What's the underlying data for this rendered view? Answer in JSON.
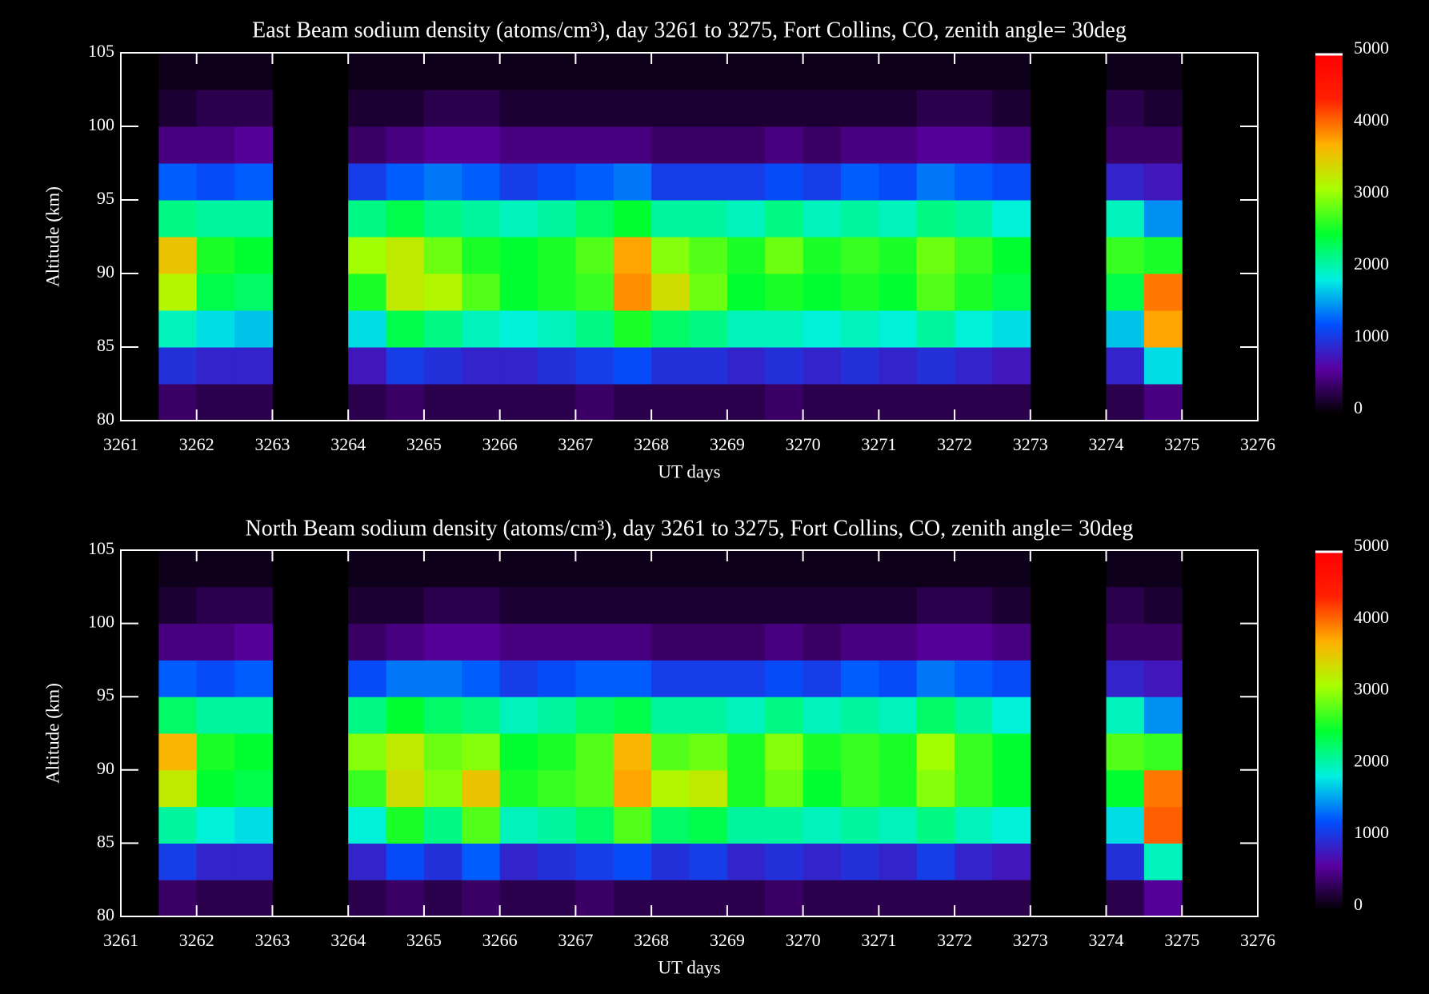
{
  "chart_data": [
    {
      "type": "heatmap",
      "title": "East Beam sodium density (atoms/cm³), day 3261 to  3275, Fort Collins, CO, zenith angle= 30deg",
      "xlabel": "UT days",
      "ylabel": "Altitude (km)",
      "xlim": [
        3261,
        3276
      ],
      "xticks": [
        3261,
        3262,
        3263,
        3264,
        3265,
        3266,
        3267,
        3268,
        3269,
        3270,
        3271,
        3272,
        3273,
        3274,
        3275,
        3276
      ],
      "ylim": [
        80,
        105
      ],
      "yticks": [
        80,
        85,
        90,
        95,
        100,
        105
      ],
      "zlim": [
        0,
        5000
      ],
      "zticks": [
        0,
        1000,
        2000,
        3000,
        4000,
        5000
      ],
      "colormap": [
        "#000000",
        "#5a00a0",
        "#0050ff",
        "#00f0e0",
        "#00ff30",
        "#a8ff00",
        "#ffb000",
        "#ff2000",
        "#ff0000"
      ],
      "xbins": [
        3261.5,
        3262,
        3262.5,
        3263,
        3263.5,
        3264,
        3264.5,
        3265,
        3265.5,
        3266,
        3266.5,
        3267,
        3267.5,
        3268,
        3268.5,
        3269,
        3269.5,
        3270,
        3270.5,
        3271,
        3271.5,
        3272,
        3272.5,
        3273,
        3273.5,
        3274,
        3274.5,
        3275
      ],
      "ybins": [
        80,
        82.5,
        85,
        87.5,
        90,
        92.5,
        95,
        97.5,
        100,
        102.5,
        105
      ],
      "values": [
        [
          400,
          300,
          300,
          null,
          null,
          300,
          400,
          300,
          300,
          300,
          300,
          400,
          300,
          300,
          300,
          300,
          400,
          300,
          300,
          300,
          300,
          300,
          300,
          null,
          null,
          300,
          500
        ],
        [
          1000,
          900,
          900,
          null,
          null,
          800,
          1100,
          1000,
          900,
          900,
          1000,
          1100,
          1200,
          1000,
          1000,
          900,
          1000,
          900,
          1000,
          900,
          1000,
          900,
          800,
          null,
          null,
          900,
          1800
        ],
        [
          2000,
          1800,
          1700,
          null,
          null,
          1800,
          2400,
          2200,
          2000,
          1900,
          2000,
          2200,
          2600,
          2300,
          2200,
          2000,
          2000,
          1900,
          2000,
          1900,
          2100,
          1900,
          1800,
          null,
          null,
          1700,
          3800
        ],
        [
          3200,
          2400,
          2300,
          null,
          null,
          2600,
          3300,
          3200,
          2800,
          2500,
          2600,
          2700,
          3900,
          3400,
          2900,
          2500,
          2600,
          2500,
          2600,
          2500,
          2800,
          2600,
          2400,
          null,
          null,
          2400,
          4000
        ],
        [
          3600,
          2600,
          2500,
          null,
          null,
          3100,
          3300,
          2900,
          2600,
          2500,
          2600,
          2800,
          3800,
          3000,
          2800,
          2600,
          2900,
          2600,
          2700,
          2600,
          2900,
          2700,
          2500,
          null,
          null,
          2700,
          2600
        ],
        [
          2200,
          2100,
          2100,
          null,
          null,
          2200,
          2400,
          2200,
          2100,
          2000,
          2100,
          2300,
          2500,
          2100,
          2100,
          2000,
          2200,
          2000,
          2100,
          2000,
          2200,
          2100,
          1900,
          null,
          null,
          2000,
          1500
        ],
        [
          1300,
          1200,
          1300,
          null,
          null,
          1100,
          1300,
          1400,
          1300,
          1100,
          1200,
          1300,
          1400,
          1100,
          1100,
          1100,
          1200,
          1100,
          1300,
          1200,
          1400,
          1300,
          1200,
          null,
          null,
          900,
          800
        ],
        [
          500,
          500,
          600,
          null,
          null,
          400,
          500,
          600,
          600,
          500,
          500,
          500,
          500,
          400,
          400,
          400,
          500,
          400,
          500,
          500,
          600,
          600,
          500,
          null,
          null,
          400,
          400
        ],
        [
          200,
          300,
          300,
          null,
          null,
          200,
          200,
          300,
          300,
          200,
          200,
          200,
          200,
          200,
          200,
          200,
          200,
          200,
          200,
          200,
          300,
          300,
          200,
          null,
          null,
          300,
          200
        ],
        [
          100,
          100,
          100,
          null,
          null,
          100,
          100,
          100,
          100,
          100,
          100,
          100,
          100,
          100,
          100,
          100,
          100,
          100,
          100,
          100,
          100,
          100,
          100,
          null,
          null,
          100,
          100
        ]
      ]
    },
    {
      "type": "heatmap",
      "title": "North Beam sodium density (atoms/cm³), day 3261 to  3275, Fort Collins, CO, zenith angle= 30deg",
      "xlabel": "UT days",
      "ylabel": "Altitude (km)",
      "xlim": [
        3261,
        3276
      ],
      "xticks": [
        3261,
        3262,
        3263,
        3264,
        3265,
        3266,
        3267,
        3268,
        3269,
        3270,
        3271,
        3272,
        3273,
        3274,
        3275,
        3276
      ],
      "ylim": [
        80,
        105
      ],
      "yticks": [
        80,
        85,
        90,
        95,
        100,
        105
      ],
      "zlim": [
        0,
        5000
      ],
      "zticks": [
        0,
        1000,
        2000,
        3000,
        4000,
        5000
      ],
      "colormap": [
        "#000000",
        "#5a00a0",
        "#0050ff",
        "#00f0e0",
        "#00ff30",
        "#a8ff00",
        "#ffb000",
        "#ff2000",
        "#ff0000"
      ],
      "xbins": [
        3261.5,
        3262,
        3262.5,
        3263,
        3263.5,
        3264,
        3264.5,
        3265,
        3265.5,
        3266,
        3266.5,
        3267,
        3267.5,
        3268,
        3268.5,
        3269,
        3269.5,
        3270,
        3270.5,
        3271,
        3271.5,
        3272,
        3272.5,
        3273,
        3273.5,
        3274,
        3274.5,
        3275
      ],
      "ybins": [
        80,
        82.5,
        85,
        87.5,
        90,
        92.5,
        95,
        97.5,
        100,
        102.5,
        105
      ],
      "values": [
        [
          400,
          300,
          300,
          null,
          null,
          300,
          400,
          300,
          400,
          300,
          300,
          400,
          300,
          300,
          300,
          300,
          400,
          300,
          300,
          300,
          300,
          300,
          300,
          null,
          null,
          300,
          600
        ],
        [
          1100,
          900,
          900,
          null,
          null,
          900,
          1200,
          1000,
          1300,
          900,
          1000,
          1100,
          1200,
          1000,
          1100,
          900,
          1000,
          900,
          1000,
          900,
          1100,
          900,
          800,
          null,
          null,
          1000,
          2000
        ],
        [
          2100,
          1900,
          1800,
          null,
          null,
          1900,
          2600,
          2200,
          2800,
          2000,
          2100,
          2300,
          2800,
          2300,
          2400,
          2100,
          2100,
          2000,
          2100,
          2000,
          2200,
          2000,
          1900,
          null,
          null,
          1800,
          4100
        ],
        [
          3300,
          2500,
          2400,
          null,
          null,
          2700,
          3400,
          3000,
          3600,
          2600,
          2700,
          2800,
          3800,
          3200,
          3300,
          2600,
          2900,
          2500,
          2700,
          2600,
          3000,
          2700,
          2500,
          null,
          null,
          2500,
          4000
        ],
        [
          3700,
          2600,
          2500,
          null,
          null,
          3000,
          3300,
          2900,
          3000,
          2500,
          2600,
          2800,
          3700,
          2800,
          2900,
          2600,
          3000,
          2600,
          2700,
          2600,
          3100,
          2700,
          2500,
          null,
          null,
          2800,
          2700
        ],
        [
          2300,
          2100,
          2100,
          null,
          null,
          2200,
          2500,
          2300,
          2200,
          2000,
          2100,
          2300,
          2400,
          2100,
          2100,
          2000,
          2200,
          2000,
          2100,
          2000,
          2300,
          2100,
          1900,
          null,
          null,
          2000,
          1500
        ],
        [
          1300,
          1200,
          1300,
          null,
          null,
          1200,
          1400,
          1400,
          1300,
          1100,
          1200,
          1300,
          1300,
          1100,
          1100,
          1100,
          1200,
          1100,
          1300,
          1200,
          1400,
          1300,
          1200,
          null,
          null,
          900,
          800
        ],
        [
          500,
          500,
          600,
          null,
          null,
          400,
          500,
          600,
          600,
          500,
          500,
          500,
          500,
          400,
          400,
          400,
          500,
          400,
          500,
          500,
          600,
          600,
          500,
          null,
          null,
          400,
          400
        ],
        [
          200,
          300,
          300,
          null,
          null,
          200,
          200,
          300,
          300,
          200,
          200,
          200,
          200,
          200,
          200,
          200,
          200,
          200,
          200,
          200,
          300,
          300,
          200,
          null,
          null,
          300,
          200
        ],
        [
          100,
          100,
          100,
          null,
          null,
          100,
          100,
          100,
          100,
          100,
          100,
          100,
          100,
          100,
          100,
          100,
          100,
          100,
          100,
          100,
          100,
          100,
          100,
          null,
          null,
          100,
          100
        ]
      ]
    }
  ]
}
